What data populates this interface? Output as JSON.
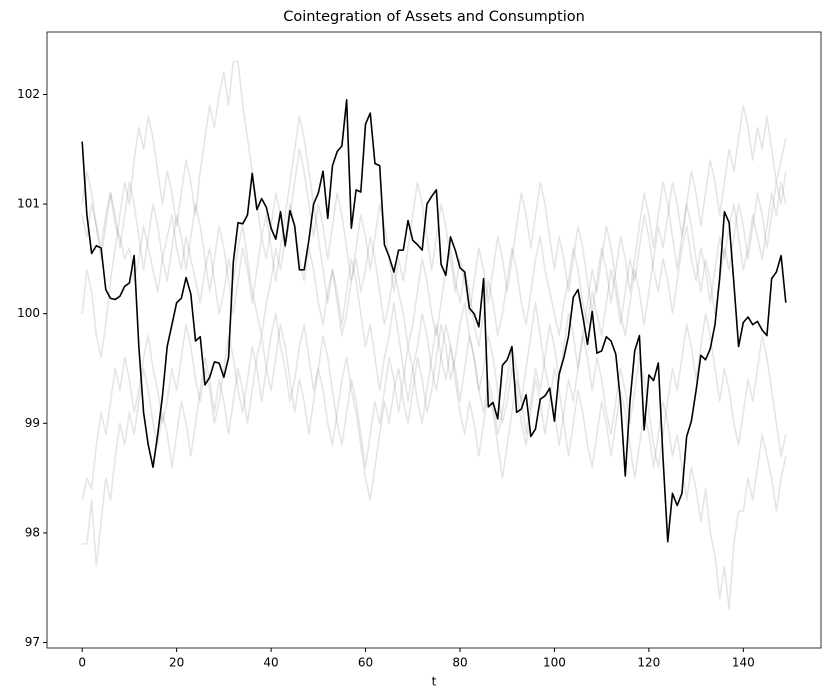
{
  "chart_data": {
    "type": "line",
    "title": "Cointegration of Assets and Consumption",
    "xlabel": "t",
    "x": [
      0,
      1,
      2,
      3,
      4,
      5,
      6,
      7,
      8,
      9,
      10,
      11,
      12,
      13,
      14,
      15,
      16,
      17,
      18,
      19,
      20,
      21,
      22,
      23,
      24,
      25,
      26,
      27,
      28,
      29,
      30,
      31,
      32,
      33,
      34,
      35,
      36,
      37,
      38,
      39,
      40,
      41,
      42,
      43,
      44,
      45,
      46,
      47,
      48,
      49,
      50,
      51,
      52,
      53,
      54,
      55,
      56,
      57,
      58,
      59,
      60,
      61,
      62,
      63,
      64,
      65,
      66,
      67,
      68,
      69,
      70,
      71,
      72,
      73,
      74,
      75,
      76,
      77,
      78,
      79,
      80,
      81,
      82,
      83,
      84,
      85,
      86,
      87,
      88,
      89,
      90,
      91,
      92,
      93,
      94,
      95,
      96,
      97,
      98,
      99,
      100,
      101,
      102,
      103,
      104,
      105,
      106,
      107,
      108,
      109,
      110,
      111,
      112,
      113,
      114,
      115,
      116,
      117,
      118,
      119,
      120,
      121,
      122,
      123,
      124,
      125,
      126,
      127,
      128,
      129,
      130,
      131,
      132,
      133,
      134,
      135,
      136,
      137,
      138,
      139,
      140,
      141,
      142,
      143,
      144,
      145,
      146,
      147,
      148,
      149
    ],
    "xlim": [
      -7.45,
      156.45
    ],
    "ylim": [
      96.95,
      102.57
    ],
    "xticks": [
      0,
      20,
      40,
      60,
      80,
      100,
      120,
      140
    ],
    "yticks": [
      97,
      98,
      99,
      100,
      101,
      102
    ],
    "series": [
      {
        "color": "#000000",
        "alpha": 0.1,
        "values": [
          100.9,
          100.7,
          101.0,
          100.8,
          100.6,
          100.9,
          101.1,
          100.8,
          100.7,
          100.5,
          100.6,
          100.3,
          100.5,
          100.8,
          100.6,
          100.4,
          100.2,
          100.5,
          100.7,
          100.9,
          100.6,
          100.4,
          100.7,
          100.5,
          100.3,
          100.1,
          100.4,
          100.6,
          100.3,
          100.0,
          100.2,
          100.5,
          100.3,
          100.6,
          100.8,
          100.5,
          100.2,
          100.0,
          99.8,
          100.1,
          100.3,
          100.6,
          100.4,
          100.7,
          101.0,
          100.8,
          100.5,
          100.3,
          100.6,
          100.4,
          100.1,
          99.9,
          100.2,
          100.4,
          100.1,
          99.8,
          100.0,
          100.3,
          100.5,
          100.2,
          100.4,
          100.7,
          100.5,
          100.2,
          99.9,
          100.1,
          100.4,
          100.2,
          100.0,
          99.7,
          99.9,
          100.2,
          100.5,
          100.3,
          100.0,
          99.8,
          100.1,
          100.4,
          100.6,
          100.3,
          100.1,
          100.4,
          100.2,
          99.9,
          99.7,
          100.0,
          100.3,
          100.1,
          99.8,
          100.0,
          100.3,
          100.6,
          100.4,
          100.1,
          99.9,
          100.2,
          100.5,
          100.7,
          100.4,
          100.2,
          100.0,
          99.8,
          100.1,
          100.3,
          100.6,
          100.4,
          100.1,
          99.9,
          100.2,
          100.0,
          99.8,
          100.1,
          100.4,
          100.2,
          99.9,
          100.2,
          100.5,
          100.3,
          100.6,
          100.9,
          100.7,
          100.4,
          100.2,
          100.5,
          100.3,
          100.0,
          100.3,
          100.6,
          100.8,
          100.5,
          100.3,
          100.6,
          100.4,
          100.1,
          100.4,
          100.7,
          100.5,
          100.8,
          101.0,
          100.7,
          100.4,
          100.6,
          100.9,
          100.7,
          100.5,
          100.8,
          101.1,
          100.9,
          101.2,
          101.0
        ]
      },
      {
        "color": "#000000",
        "alpha": 0.1,
        "values": [
          98.3,
          98.5,
          98.4,
          98.8,
          99.1,
          98.9,
          99.2,
          99.5,
          99.3,
          99.6,
          99.4,
          99.1,
          99.3,
          99.6,
          99.8,
          99.5,
          99.3,
          99.0,
          99.2,
          99.5,
          99.3,
          99.6,
          99.9,
          99.7,
          99.4,
          99.2,
          99.5,
          99.3,
          99.0,
          99.2,
          99.5,
          99.8,
          99.6,
          99.3,
          99.1,
          99.4,
          99.7,
          99.5,
          99.2,
          99.5,
          99.8,
          100.0,
          99.7,
          99.5,
          99.2,
          99.4,
          99.7,
          99.9,
          99.6,
          99.3,
          99.5,
          99.8,
          99.6,
          99.3,
          99.0,
          98.8,
          99.1,
          99.4,
          99.2,
          98.9,
          98.6,
          98.9,
          99.2,
          99.0,
          99.3,
          99.6,
          99.4,
          99.1,
          99.4,
          99.7,
          99.5,
          99.2,
          99.0,
          99.3,
          99.6,
          99.9,
          99.6,
          99.4,
          99.7,
          99.5,
          99.2,
          99.5,
          99.8,
          99.6,
          99.3,
          99.1,
          99.4,
          99.2,
          98.9,
          99.1,
          99.4,
          99.7,
          99.5,
          99.2,
          99.5,
          99.8,
          100.1,
          99.8,
          99.5,
          99.3,
          99.1,
          98.8,
          99.1,
          99.4,
          99.2,
          99.5,
          99.8,
          99.6,
          99.3,
          99.6,
          99.4,
          99.1,
          98.9,
          99.2,
          99.5,
          99.3,
          99.0,
          99.3,
          99.6,
          99.4,
          99.1,
          98.8,
          98.6,
          98.9,
          99.2,
          99.5,
          99.3,
          99.6,
          99.9,
          99.7,
          99.4,
          99.7,
          100.0,
          99.8,
          99.5,
          99.2,
          99.5,
          99.3,
          99.0,
          98.8,
          99.1,
          99.4,
          99.2,
          99.5,
          99.8,
          99.6,
          99.3,
          99.0,
          98.7,
          98.9
        ]
      },
      {
        "color": "#000000",
        "alpha": 0.1,
        "values": [
          100.0,
          100.4,
          100.2,
          99.8,
          99.6,
          99.9,
          100.3,
          100.6,
          100.9,
          101.2,
          101.0,
          101.4,
          101.7,
          101.5,
          101.8,
          101.6,
          101.3,
          101.0,
          101.3,
          101.1,
          100.8,
          101.1,
          101.4,
          101.2,
          100.9,
          101.3,
          101.6,
          101.9,
          101.7,
          102.0,
          102.2,
          101.9,
          102.3,
          102.3,
          101.9,
          101.6,
          101.3,
          101.0,
          100.7,
          100.9,
          100.6,
          100.3,
          100.6,
          100.9,
          101.2,
          101.5,
          101.8,
          101.6,
          101.3,
          101.0,
          100.7,
          100.4,
          100.1,
          100.4,
          100.2,
          99.9,
          100.2,
          100.5,
          100.3,
          100.0,
          99.7,
          99.9,
          99.6,
          99.3,
          99.6,
          99.8,
          100.1,
          99.8,
          99.5,
          99.2,
          99.5,
          99.7,
          100.0,
          99.8,
          99.5,
          99.3,
          99.6,
          99.9,
          99.7,
          99.4,
          99.1,
          98.9,
          99.2,
          99.0,
          98.7,
          99.0,
          99.3,
          99.1,
          98.8,
          98.5,
          98.8,
          99.1,
          99.4,
          99.2,
          98.9,
          99.2,
          99.5,
          99.3,
          99.6,
          99.9,
          99.7,
          99.4,
          99.7,
          100.0,
          99.8,
          99.5,
          99.8,
          100.1,
          100.4,
          100.2,
          100.5,
          100.8,
          100.6,
          100.3,
          100.0,
          99.8,
          100.1,
          100.4,
          100.2,
          99.9,
          100.2,
          100.5,
          100.8,
          100.6,
          100.9,
          101.2,
          101.0,
          100.7,
          101.0,
          101.3,
          101.1,
          100.8,
          101.1,
          101.4,
          101.2,
          100.9,
          101.2,
          101.5,
          101.3,
          101.6,
          101.9,
          101.7,
          101.4,
          101.7,
          101.5,
          101.8,
          101.5,
          101.2,
          101.4,
          101.6
        ]
      },
      {
        "color": "#000000",
        "alpha": 0.1,
        "values": [
          97.9,
          97.9,
          98.3,
          97.7,
          98.1,
          98.5,
          98.3,
          98.7,
          99.0,
          98.8,
          99.1,
          98.9,
          99.2,
          99.5,
          99.3,
          99.0,
          98.8,
          99.1,
          98.9,
          98.6,
          98.9,
          99.2,
          99.0,
          98.7,
          99.0,
          99.3,
          99.6,
          99.4,
          99.1,
          99.4,
          99.2,
          98.9,
          99.2,
          99.5,
          99.3,
          99.0,
          99.3,
          99.6,
          99.8,
          99.5,
          99.3,
          99.6,
          99.9,
          99.7,
          99.4,
          99.1,
          99.4,
          99.2,
          98.9,
          99.2,
          99.5,
          99.3,
          99.0,
          98.8,
          99.1,
          99.4,
          99.6,
          99.3,
          99.1,
          98.8,
          98.5,
          98.3,
          98.6,
          98.9,
          99.2,
          99.0,
          99.3,
          99.5,
          99.2,
          99.0,
          99.3,
          99.6,
          99.4,
          99.1,
          99.3,
          99.6,
          99.9,
          99.7,
          99.4,
          99.6,
          99.9,
          100.1,
          99.8,
          99.6,
          99.3,
          99.5,
          99.8,
          99.6,
          99.3,
          99.0,
          99.2,
          99.5,
          99.3,
          99.0,
          98.8,
          99.1,
          99.4,
          99.2,
          98.9,
          99.2,
          99.5,
          99.3,
          99.0,
          98.7,
          99.0,
          99.3,
          99.1,
          98.8,
          98.6,
          98.9,
          99.2,
          99.0,
          98.7,
          99.0,
          99.3,
          99.1,
          98.8,
          98.5,
          98.8,
          99.1,
          98.9,
          98.6,
          98.9,
          99.2,
          99.0,
          98.7,
          98.9,
          98.6,
          98.3,
          98.6,
          98.4,
          98.1,
          98.4,
          98.0,
          97.8,
          97.4,
          97.7,
          97.3,
          97.9,
          98.2,
          98.2,
          98.5,
          98.3,
          98.6,
          98.9,
          98.7,
          98.5,
          98.2,
          98.5,
          98.7
        ]
      },
      {
        "color": "#000000",
        "alpha": 0.1,
        "values": [
          101.0,
          101.3,
          101.1,
          100.8,
          100.5,
          100.8,
          101.1,
          100.9,
          100.6,
          100.9,
          101.2,
          101.0,
          100.7,
          100.4,
          100.7,
          101.0,
          100.8,
          100.5,
          100.3,
          100.6,
          100.9,
          100.7,
          100.4,
          100.7,
          101.0,
          100.8,
          100.5,
          100.2,
          100.5,
          100.8,
          100.6,
          100.3,
          100.0,
          100.3,
          100.6,
          100.4,
          100.1,
          100.4,
          100.7,
          100.5,
          100.8,
          101.1,
          100.9,
          100.6,
          100.9,
          101.2,
          101.5,
          101.3,
          101.0,
          100.7,
          101.0,
          100.8,
          100.5,
          100.8,
          101.1,
          100.9,
          100.6,
          100.3,
          100.6,
          100.9,
          100.7,
          100.4,
          100.7,
          101.0,
          100.8,
          100.5,
          100.2,
          100.5,
          100.3,
          100.6,
          100.9,
          101.2,
          101.0,
          100.7,
          100.4,
          100.7,
          101.0,
          100.8,
          100.5,
          100.2,
          100.5,
          100.3,
          100.0,
          100.3,
          100.6,
          100.4,
          100.1,
          100.4,
          100.7,
          100.5,
          100.2,
          100.5,
          100.8,
          101.1,
          100.9,
          100.6,
          100.9,
          101.2,
          101.0,
          100.7,
          100.4,
          100.7,
          100.5,
          100.2,
          100.5,
          100.8,
          100.6,
          100.3,
          100.0,
          100.3,
          100.6,
          100.4,
          100.1,
          100.4,
          100.7,
          100.5,
          100.2,
          100.5,
          100.8,
          101.1,
          100.9,
          100.6,
          100.9,
          101.2,
          101.0,
          100.7,
          100.4,
          100.7,
          101.0,
          100.8,
          100.5,
          100.2,
          100.5,
          100.3,
          100.0,
          100.3,
          100.6,
          100.4,
          100.7,
          101.0,
          100.8,
          100.5,
          100.8,
          101.1,
          100.9,
          100.6,
          100.9,
          101.2,
          101.0,
          101.3
        ]
      },
      {
        "color": "#000000",
        "alpha": 1,
        "values": [
          101.57,
          100.9,
          100.55,
          100.62,
          100.6,
          100.22,
          100.14,
          100.13,
          100.16,
          100.25,
          100.28,
          100.53,
          99.7,
          99.1,
          98.8,
          98.6,
          98.9,
          99.25,
          99.7,
          99.9,
          100.1,
          100.14,
          100.33,
          100.18,
          99.75,
          99.79,
          99.35,
          99.42,
          99.56,
          99.55,
          99.42,
          99.6,
          100.47,
          100.83,
          100.82,
          100.9,
          101.28,
          100.95,
          101.05,
          100.97,
          100.78,
          100.68,
          100.93,
          100.62,
          100.94,
          100.8,
          100.4,
          100.4,
          100.67,
          101.0,
          101.1,
          101.3,
          100.87,
          101.35,
          101.48,
          101.53,
          101.95,
          100.78,
          101.13,
          101.11,
          101.73,
          101.83,
          101.37,
          101.35,
          100.63,
          100.52,
          100.38,
          100.58,
          100.58,
          100.85,
          100.67,
          100.63,
          100.58,
          101.0,
          101.07,
          101.13,
          100.45,
          100.35,
          100.7,
          100.58,
          100.42,
          100.38,
          100.05,
          100.0,
          99.88,
          100.32,
          99.15,
          99.19,
          99.04,
          99.53,
          99.58,
          99.7,
          99.1,
          99.13,
          99.26,
          98.88,
          98.95,
          99.22,
          99.25,
          99.32,
          99.02,
          99.45,
          99.6,
          99.8,
          100.15,
          100.22,
          99.98,
          99.72,
          100.02,
          99.64,
          99.66,
          99.79,
          99.75,
          99.63,
          99.2,
          98.52,
          99.2,
          99.66,
          99.8,
          98.94,
          99.44,
          99.39,
          99.55,
          98.68,
          97.92,
          98.36,
          98.25,
          98.36,
          98.88,
          99.02,
          99.3,
          99.62,
          99.58,
          99.68,
          99.9,
          100.33,
          100.93,
          100.83,
          100.28,
          99.7,
          99.92,
          99.97,
          99.9,
          99.93,
          99.85,
          99.8,
          100.32,
          100.38,
          100.53,
          100.1
        ]
      }
    ]
  }
}
